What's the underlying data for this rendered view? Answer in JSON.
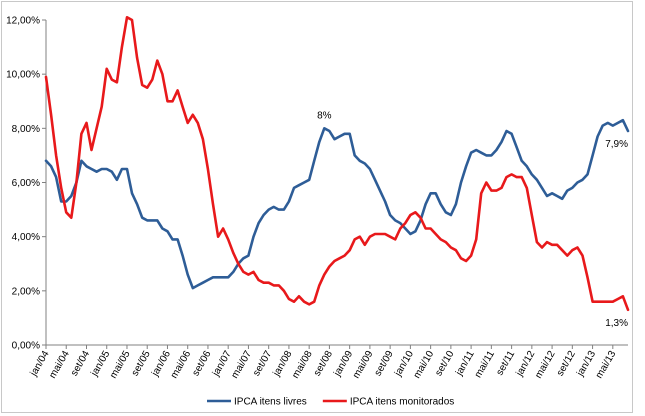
{
  "chart_data": {
    "type": "line",
    "title": "",
    "xlabel": "",
    "ylabel": "",
    "ylim": [
      0,
      12
    ],
    "grid": false,
    "legend_position": "bottom",
    "yticks": [
      {
        "value": 0,
        "label": "0,00%"
      },
      {
        "value": 2,
        "label": "2,00%"
      },
      {
        "value": 4,
        "label": "4,00%"
      },
      {
        "value": 6,
        "label": "6,00%"
      },
      {
        "value": 8,
        "label": "8,00%"
      },
      {
        "value": 10,
        "label": "10,00%"
      },
      {
        "value": 12,
        "label": "12,00%"
      }
    ],
    "x_start": "2004-01",
    "x_end": "2013-08",
    "xticks": [
      {
        "date": "2004-01",
        "label": "jan/04"
      },
      {
        "date": "2004-05",
        "label": "mai/04"
      },
      {
        "date": "2004-09",
        "label": "set/04"
      },
      {
        "date": "2005-01",
        "label": "jan/05"
      },
      {
        "date": "2005-05",
        "label": "mai/05"
      },
      {
        "date": "2005-09",
        "label": "set/05"
      },
      {
        "date": "2006-01",
        "label": "jan/06"
      },
      {
        "date": "2006-05",
        "label": "mai/06"
      },
      {
        "date": "2006-09",
        "label": "set/06"
      },
      {
        "date": "2007-01",
        "label": "jan/07"
      },
      {
        "date": "2007-05",
        "label": "mai/07"
      },
      {
        "date": "2007-09",
        "label": "set/07"
      },
      {
        "date": "2008-01",
        "label": "jan/08"
      },
      {
        "date": "2008-05",
        "label": "mai/08"
      },
      {
        "date": "2008-09",
        "label": "set/08"
      },
      {
        "date": "2009-01",
        "label": "jan/09"
      },
      {
        "date": "2009-05",
        "label": "mai/09"
      },
      {
        "date": "2009-09",
        "label": "set/09"
      },
      {
        "date": "2010-01",
        "label": "jan/10"
      },
      {
        "date": "2010-05",
        "label": "mai/10"
      },
      {
        "date": "2010-09",
        "label": "set/10"
      },
      {
        "date": "2011-01",
        "label": "jan/11"
      },
      {
        "date": "2011-05",
        "label": "mai/11"
      },
      {
        "date": "2011-09",
        "label": "set/11"
      },
      {
        "date": "2012-01",
        "label": "jan/12"
      },
      {
        "date": "2012-05",
        "label": "mai/12"
      },
      {
        "date": "2012-09",
        "label": "set/12"
      },
      {
        "date": "2013-01",
        "label": "jan/13"
      },
      {
        "date": "2013-05",
        "label": "mai/13"
      }
    ],
    "series": [
      {
        "name": "IPCA itens livres",
        "color": "#2E5D97",
        "points": [
          [
            "2004-01",
            6.8
          ],
          [
            "2004-02",
            6.6
          ],
          [
            "2004-03",
            6.2
          ],
          [
            "2004-04",
            5.3
          ],
          [
            "2004-05",
            5.3
          ],
          [
            "2004-06",
            5.5
          ],
          [
            "2004-07",
            6.0
          ],
          [
            "2004-08",
            6.8
          ],
          [
            "2004-09",
            6.6
          ],
          [
            "2004-10",
            6.5
          ],
          [
            "2004-11",
            6.4
          ],
          [
            "2004-12",
            6.5
          ],
          [
            "2005-01",
            6.5
          ],
          [
            "2005-02",
            6.4
          ],
          [
            "2005-03",
            6.1
          ],
          [
            "2005-04",
            6.5
          ],
          [
            "2005-05",
            6.5
          ],
          [
            "2005-06",
            5.6
          ],
          [
            "2005-07",
            5.2
          ],
          [
            "2005-08",
            4.7
          ],
          [
            "2005-09",
            4.6
          ],
          [
            "2005-10",
            4.6
          ],
          [
            "2005-11",
            4.6
          ],
          [
            "2005-12",
            4.3
          ],
          [
            "2006-01",
            4.2
          ],
          [
            "2006-02",
            3.9
          ],
          [
            "2006-03",
            3.9
          ],
          [
            "2006-04",
            3.3
          ],
          [
            "2006-05",
            2.6
          ],
          [
            "2006-06",
            2.1
          ],
          [
            "2006-07",
            2.2
          ],
          [
            "2006-08",
            2.3
          ],
          [
            "2006-09",
            2.4
          ],
          [
            "2006-10",
            2.5
          ],
          [
            "2006-11",
            2.5
          ],
          [
            "2006-12",
            2.5
          ],
          [
            "2007-01",
            2.5
          ],
          [
            "2007-02",
            2.7
          ],
          [
            "2007-03",
            3.0
          ],
          [
            "2007-04",
            3.2
          ],
          [
            "2007-05",
            3.3
          ],
          [
            "2007-06",
            4.0
          ],
          [
            "2007-07",
            4.5
          ],
          [
            "2007-08",
            4.8
          ],
          [
            "2007-09",
            5.0
          ],
          [
            "2007-10",
            5.1
          ],
          [
            "2007-11",
            5.0
          ],
          [
            "2007-12",
            5.0
          ],
          [
            "2008-01",
            5.3
          ],
          [
            "2008-02",
            5.8
          ],
          [
            "2008-03",
            5.9
          ],
          [
            "2008-04",
            6.0
          ],
          [
            "2008-05",
            6.1
          ],
          [
            "2008-06",
            6.8
          ],
          [
            "2008-07",
            7.5
          ],
          [
            "2008-08",
            8.0
          ],
          [
            "2008-09",
            7.9
          ],
          [
            "2008-10",
            7.6
          ],
          [
            "2008-11",
            7.7
          ],
          [
            "2008-12",
            7.8
          ],
          [
            "2009-01",
            7.8
          ],
          [
            "2009-02",
            7.0
          ],
          [
            "2009-03",
            6.8
          ],
          [
            "2009-04",
            6.7
          ],
          [
            "2009-05",
            6.5
          ],
          [
            "2009-06",
            6.1
          ],
          [
            "2009-07",
            5.7
          ],
          [
            "2009-08",
            5.3
          ],
          [
            "2009-09",
            4.8
          ],
          [
            "2009-10",
            4.6
          ],
          [
            "2009-11",
            4.5
          ],
          [
            "2009-12",
            4.3
          ],
          [
            "2010-01",
            4.1
          ],
          [
            "2010-02",
            4.2
          ],
          [
            "2010-03",
            4.6
          ],
          [
            "2010-04",
            5.2
          ],
          [
            "2010-05",
            5.6
          ],
          [
            "2010-06",
            5.6
          ],
          [
            "2010-07",
            5.2
          ],
          [
            "2010-08",
            4.9
          ],
          [
            "2010-09",
            4.8
          ],
          [
            "2010-10",
            5.2
          ],
          [
            "2010-11",
            6.0
          ],
          [
            "2010-12",
            6.6
          ],
          [
            "2011-01",
            7.1
          ],
          [
            "2011-02",
            7.2
          ],
          [
            "2011-03",
            7.1
          ],
          [
            "2011-04",
            7.0
          ],
          [
            "2011-05",
            7.0
          ],
          [
            "2011-06",
            7.2
          ],
          [
            "2011-07",
            7.5
          ],
          [
            "2011-08",
            7.9
          ],
          [
            "2011-09",
            7.8
          ],
          [
            "2011-10",
            7.3
          ],
          [
            "2011-11",
            6.8
          ],
          [
            "2011-12",
            6.6
          ],
          [
            "2012-01",
            6.3
          ],
          [
            "2012-02",
            6.1
          ],
          [
            "2012-03",
            5.8
          ],
          [
            "2012-04",
            5.5
          ],
          [
            "2012-05",
            5.6
          ],
          [
            "2012-06",
            5.5
          ],
          [
            "2012-07",
            5.4
          ],
          [
            "2012-08",
            5.7
          ],
          [
            "2012-09",
            5.8
          ],
          [
            "2012-10",
            6.0
          ],
          [
            "2012-11",
            6.1
          ],
          [
            "2012-12",
            6.3
          ],
          [
            "2013-01",
            7.0
          ],
          [
            "2013-02",
            7.7
          ],
          [
            "2013-03",
            8.1
          ],
          [
            "2013-04",
            8.2
          ],
          [
            "2013-05",
            8.1
          ],
          [
            "2013-06",
            8.2
          ],
          [
            "2013-07",
            8.3
          ],
          [
            "2013-08",
            7.9
          ]
        ]
      },
      {
        "name": "IPCA itens monitorados",
        "color": "#E8191B",
        "points": [
          [
            "2004-01",
            9.9
          ],
          [
            "2004-02",
            8.5
          ],
          [
            "2004-03",
            7.0
          ],
          [
            "2004-04",
            5.8
          ],
          [
            "2004-05",
            4.9
          ],
          [
            "2004-06",
            4.7
          ],
          [
            "2004-07",
            6.0
          ],
          [
            "2004-08",
            7.8
          ],
          [
            "2004-09",
            8.2
          ],
          [
            "2004-10",
            7.2
          ],
          [
            "2004-11",
            8.0
          ],
          [
            "2004-12",
            8.8
          ],
          [
            "2005-01",
            10.2
          ],
          [
            "2005-02",
            9.8
          ],
          [
            "2005-03",
            9.7
          ],
          [
            "2005-04",
            11.0
          ],
          [
            "2005-05",
            12.1
          ],
          [
            "2005-06",
            12.0
          ],
          [
            "2005-07",
            10.6
          ],
          [
            "2005-08",
            9.6
          ],
          [
            "2005-09",
            9.5
          ],
          [
            "2005-10",
            9.8
          ],
          [
            "2005-11",
            10.5
          ],
          [
            "2005-12",
            10.0
          ],
          [
            "2006-01",
            9.0
          ],
          [
            "2006-02",
            9.0
          ],
          [
            "2006-03",
            9.4
          ],
          [
            "2006-04",
            8.8
          ],
          [
            "2006-05",
            8.2
          ],
          [
            "2006-06",
            8.5
          ],
          [
            "2006-07",
            8.2
          ],
          [
            "2006-08",
            7.6
          ],
          [
            "2006-09",
            6.5
          ],
          [
            "2006-10",
            5.2
          ],
          [
            "2006-11",
            4.0
          ],
          [
            "2006-12",
            4.3
          ],
          [
            "2007-01",
            3.9
          ],
          [
            "2007-02",
            3.4
          ],
          [
            "2007-03",
            3.0
          ],
          [
            "2007-04",
            2.7
          ],
          [
            "2007-05",
            2.6
          ],
          [
            "2007-06",
            2.7
          ],
          [
            "2007-07",
            2.4
          ],
          [
            "2007-08",
            2.3
          ],
          [
            "2007-09",
            2.3
          ],
          [
            "2007-10",
            2.2
          ],
          [
            "2007-11",
            2.2
          ],
          [
            "2007-12",
            2.0
          ],
          [
            "2008-01",
            1.7
          ],
          [
            "2008-02",
            1.6
          ],
          [
            "2008-03",
            1.8
          ],
          [
            "2008-04",
            1.6
          ],
          [
            "2008-05",
            1.5
          ],
          [
            "2008-06",
            1.6
          ],
          [
            "2008-07",
            2.2
          ],
          [
            "2008-08",
            2.6
          ],
          [
            "2008-09",
            2.9
          ],
          [
            "2008-10",
            3.1
          ],
          [
            "2008-11",
            3.2
          ],
          [
            "2008-12",
            3.3
          ],
          [
            "2009-01",
            3.5
          ],
          [
            "2009-02",
            3.9
          ],
          [
            "2009-03",
            4.0
          ],
          [
            "2009-04",
            3.7
          ],
          [
            "2009-05",
            4.0
          ],
          [
            "2009-06",
            4.1
          ],
          [
            "2009-07",
            4.1
          ],
          [
            "2009-08",
            4.1
          ],
          [
            "2009-09",
            4.0
          ],
          [
            "2009-10",
            3.9
          ],
          [
            "2009-11",
            4.3
          ],
          [
            "2009-12",
            4.5
          ],
          [
            "2010-01",
            4.8
          ],
          [
            "2010-02",
            4.9
          ],
          [
            "2010-03",
            4.7
          ],
          [
            "2010-04",
            4.3
          ],
          [
            "2010-05",
            4.3
          ],
          [
            "2010-06",
            4.1
          ],
          [
            "2010-07",
            3.9
          ],
          [
            "2010-08",
            3.8
          ],
          [
            "2010-09",
            3.6
          ],
          [
            "2010-10",
            3.5
          ],
          [
            "2010-11",
            3.2
          ],
          [
            "2010-12",
            3.1
          ],
          [
            "2011-01",
            3.3
          ],
          [
            "2011-02",
            3.9
          ],
          [
            "2011-03",
            5.6
          ],
          [
            "2011-04",
            6.0
          ],
          [
            "2011-05",
            5.7
          ],
          [
            "2011-06",
            5.7
          ],
          [
            "2011-07",
            5.8
          ],
          [
            "2011-08",
            6.2
          ],
          [
            "2011-09",
            6.3
          ],
          [
            "2011-10",
            6.2
          ],
          [
            "2011-11",
            6.2
          ],
          [
            "2011-12",
            5.8
          ],
          [
            "2012-01",
            4.8
          ],
          [
            "2012-02",
            3.8
          ],
          [
            "2012-03",
            3.6
          ],
          [
            "2012-04",
            3.8
          ],
          [
            "2012-05",
            3.7
          ],
          [
            "2012-06",
            3.7
          ],
          [
            "2012-07",
            3.5
          ],
          [
            "2012-08",
            3.3
          ],
          [
            "2012-09",
            3.5
          ],
          [
            "2012-10",
            3.6
          ],
          [
            "2012-11",
            3.3
          ],
          [
            "2012-12",
            2.5
          ],
          [
            "2013-01",
            1.6
          ],
          [
            "2013-02",
            1.6
          ],
          [
            "2013-03",
            1.6
          ],
          [
            "2013-04",
            1.6
          ],
          [
            "2013-05",
            1.6
          ],
          [
            "2013-06",
            1.7
          ],
          [
            "2013-07",
            1.8
          ],
          [
            "2013-08",
            1.3
          ]
        ]
      }
    ],
    "annotations": [
      {
        "text": "8%",
        "date": "2008-08",
        "value": 8.0,
        "series": 0
      },
      {
        "text": "7,9%",
        "date": "2013-08",
        "value": 7.9,
        "series": 0
      },
      {
        "text": "1,3%",
        "date": "2013-08",
        "value": 1.3,
        "series": 1
      }
    ]
  }
}
